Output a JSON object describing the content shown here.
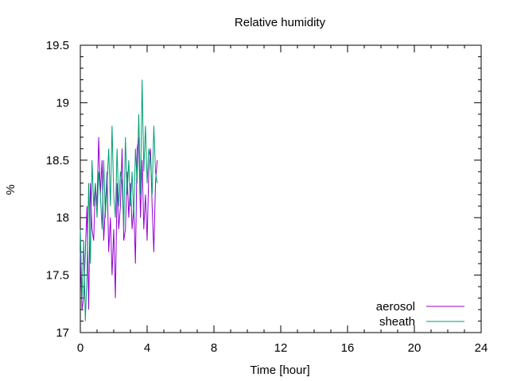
{
  "chart_data": {
    "type": "line",
    "title": "Relative humidity",
    "xlabel": "Time [hour]",
    "ylabel": "%",
    "xlim": [
      0,
      24
    ],
    "ylim": [
      17,
      19.5
    ],
    "xticks": [
      0,
      4,
      8,
      12,
      16,
      20,
      24
    ],
    "yticks": [
      17,
      17.5,
      18,
      18.5,
      19,
      19.5
    ],
    "xtick_labels": [
      "0",
      "4",
      "8",
      "12",
      "16",
      "20",
      "24"
    ],
    "ytick_labels": [
      "17",
      "17.5",
      "18",
      "18.5",
      "19",
      "19.5"
    ],
    "grid": false,
    "legend_position": "bottom-right",
    "series": [
      {
        "name": "aerosol",
        "color": "#9400d3",
        "x": [
          0.0,
          0.1,
          0.2,
          0.3,
          0.4,
          0.5,
          0.6,
          0.7,
          0.8,
          0.9,
          1.0,
          1.1,
          1.2,
          1.3,
          1.4,
          1.5,
          1.6,
          1.7,
          1.8,
          1.9,
          2.0,
          2.1,
          2.2,
          2.3,
          2.4,
          2.5,
          2.6,
          2.7,
          2.8,
          2.9,
          3.0,
          3.1,
          3.2,
          3.3,
          3.4,
          3.5,
          3.6,
          3.7,
          3.8,
          3.9,
          4.0,
          4.1,
          4.2,
          4.3,
          4.4,
          4.5,
          4.6
        ],
        "y": [
          17.7,
          17.2,
          17.3,
          17.7,
          18.1,
          17.2,
          18.3,
          17.9,
          17.8,
          18.3,
          18.1,
          18.7,
          18.2,
          18.5,
          17.8,
          18.1,
          18.4,
          17.7,
          18.0,
          17.5,
          17.9,
          17.3,
          18.3,
          17.9,
          18.1,
          18.6,
          17.8,
          17.9,
          18.4,
          18.0,
          18.3,
          17.9,
          18.1,
          17.6,
          18.6,
          18.7,
          18.0,
          18.5,
          17.9,
          18.2,
          17.8,
          18.4,
          18.6,
          18.1,
          17.7,
          18.3,
          18.5
        ]
      },
      {
        "name": "sheath",
        "color": "#009e73",
        "x": [
          0.0,
          0.1,
          0.2,
          0.3,
          0.4,
          0.5,
          0.6,
          0.7,
          0.8,
          0.9,
          1.0,
          1.1,
          1.2,
          1.3,
          1.4,
          1.5,
          1.6,
          1.7,
          1.8,
          1.9,
          2.0,
          2.1,
          2.2,
          2.3,
          2.4,
          2.5,
          2.6,
          2.7,
          2.8,
          2.9,
          3.0,
          3.1,
          3.2,
          3.3,
          3.4,
          3.5,
          3.6,
          3.7,
          3.8,
          3.9,
          4.0,
          4.1,
          4.2,
          4.3,
          4.4,
          4.5,
          4.6
        ],
        "y": [
          17.9,
          17.3,
          17.8,
          17.1,
          17.5,
          18.3,
          17.6,
          18.5,
          18.1,
          18.3,
          18.0,
          18.4,
          18.2,
          17.9,
          18.5,
          18.0,
          18.3,
          18.6,
          18.1,
          18.8,
          18.2,
          18.0,
          18.6,
          18.1,
          18.4,
          18.3,
          17.9,
          18.7,
          18.2,
          18.5,
          18.1,
          18.4,
          18.0,
          18.6,
          18.3,
          18.9,
          18.2,
          19.2,
          18.4,
          18.8,
          18.3,
          18.6,
          18.5,
          18.2,
          18.8,
          18.4,
          18.3
        ]
      }
    ]
  }
}
